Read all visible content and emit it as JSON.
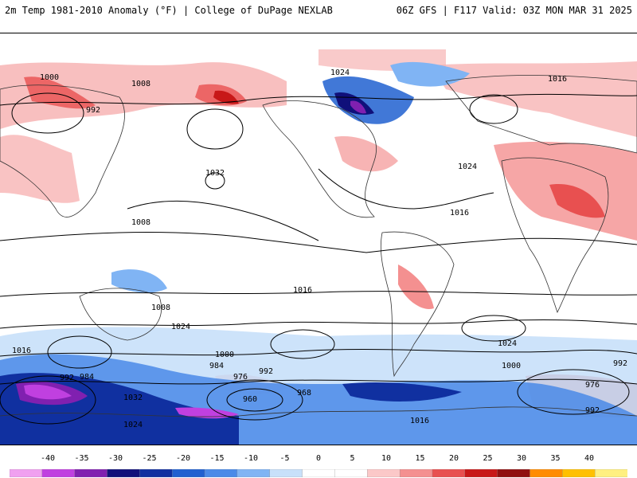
{
  "header": {
    "title": "2m Temp 1981-2010 Anomaly (°F) | College of DuPage NEXLAB",
    "run_info": "06Z GFS | F117 Valid: 03Z MON MAR 31 2025"
  },
  "map": {
    "isobar_labels": [
      "1000",
      "1008",
      "1024",
      "1016",
      "992",
      "1032",
      "984",
      "976",
      "968",
      "960"
    ],
    "colors": {
      "background": "#ffffff",
      "contour": "#000000",
      "coast": "#333333"
    }
  },
  "colorbar": {
    "ticks": [
      "-40",
      "-35",
      "-30",
      "-25",
      "-20",
      "-15",
      "-10",
      "-5",
      "0",
      "5",
      "10",
      "15",
      "20",
      "25",
      "30",
      "35",
      "40"
    ],
    "colors": [
      "#f0a0f0",
      "#c040e0",
      "#8020b0",
      "#10107a",
      "#1030a0",
      "#2060d0",
      "#4a8ae8",
      "#80b4f4",
      "#c8e0fa",
      "#ffffff",
      "#ffffff",
      "#fbc8c8",
      "#f49090",
      "#e85050",
      "#c81818",
      "#901010",
      "#ff8c00",
      "#ffc000",
      "#fff080"
    ]
  }
}
